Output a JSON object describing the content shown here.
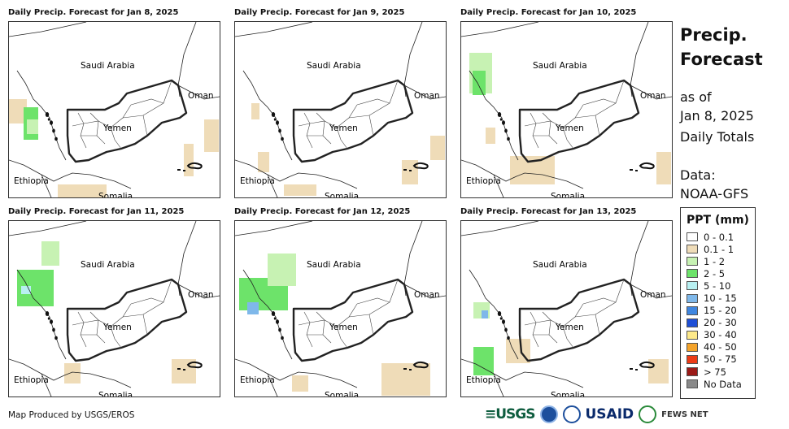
{
  "panels": [
    {
      "title": "Daily Precip. Forecast for Jan 8, 2025"
    },
    {
      "title": "Daily Precip. Forecast for Jan 9, 2025"
    },
    {
      "title": "Daily Precip. Forecast for Jan 10, 2025"
    },
    {
      "title": "Daily Precip. Forecast for Jan 11, 2025"
    },
    {
      "title": "Daily Precip. Forecast for Jan 12, 2025"
    },
    {
      "title": "Daily Precip. Forecast for Jan 13, 2025"
    }
  ],
  "map_labels": {
    "saudi": "Saudi Arabia",
    "oman": "Oman",
    "yemen": "Yemen",
    "ethiopia": "Ethiopia",
    "somalia": "Somalia"
  },
  "side": {
    "title_line1": "Precip.",
    "title_line2": "Forecast",
    "asof_line1": "as of",
    "asof_line2": "Jan 8, 2025",
    "totals": "Daily Totals",
    "data_line1": "Data:",
    "data_line2": "NOAA-GFS"
  },
  "legend": {
    "title": "PPT (mm)",
    "items": [
      {
        "label": "0 - 0.1",
        "color": "#ffffff"
      },
      {
        "label": "0.1 - 1",
        "color": "#efdcb8"
      },
      {
        "label": "1 - 2",
        "color": "#c7f2b3"
      },
      {
        "label": "2 - 5",
        "color": "#6de36a"
      },
      {
        "label": "5 - 10",
        "color": "#b8f0f2"
      },
      {
        "label": "10 - 15",
        "color": "#7fb8ea"
      },
      {
        "label": "15 - 20",
        "color": "#3f86e0"
      },
      {
        "label": "20 - 30",
        "color": "#1f4fd6"
      },
      {
        "label": "30 - 40",
        "color": "#fde98a"
      },
      {
        "label": "40 - 50",
        "color": "#f4a32a"
      },
      {
        "label": "50 - 75",
        "color": "#ec3b16"
      },
      {
        "label": "> 75",
        "color": "#9b1a17"
      },
      {
        "label": "No Data",
        "color": "#8a8a8a"
      }
    ]
  },
  "credit": "Map Produced by USGS/EROS",
  "logos": {
    "usgs": "≡USGS",
    "usaid": "USAID",
    "fews": "FEWS NET"
  }
}
